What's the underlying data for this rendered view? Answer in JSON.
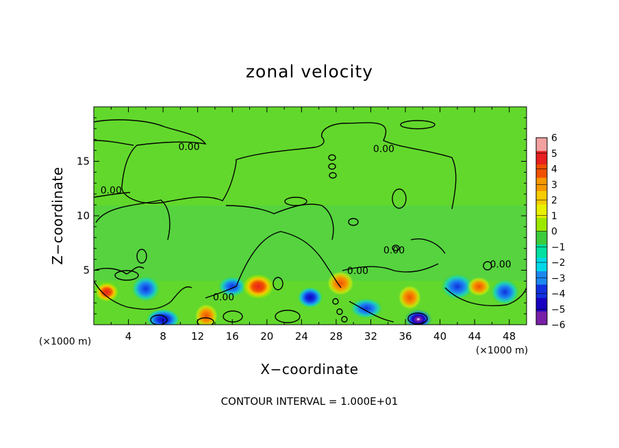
{
  "chart_data": {
    "type": "heatmap",
    "title": "zonal velocity",
    "xlabel": "X−coordinate",
    "ylabel": "Z−coordinate",
    "x_unit": "(×1000 m)",
    "y_unit": "(×1000 m)",
    "xlim": [
      0,
      50
    ],
    "ylim": [
      0,
      20
    ],
    "x_ticks": [
      4,
      8,
      12,
      16,
      20,
      24,
      28,
      32,
      36,
      40,
      44,
      48
    ],
    "x_tick_labels": [
      "4",
      "8",
      "12",
      "16",
      "20",
      "24",
      "28",
      "32",
      "36",
      "40",
      "44",
      "48"
    ],
    "y_ticks": [
      5,
      10,
      15
    ],
    "y_tick_labels": [
      "5",
      "10",
      "15"
    ],
    "colorbar": {
      "min": -6,
      "max": 6,
      "labels": [
        "6",
        "5",
        "4",
        "3",
        "2",
        "1",
        "0",
        "−1",
        "−2",
        "−3",
        "−4",
        "−5",
        "−6"
      ],
      "values": [
        6,
        5,
        4,
        3,
        2,
        1,
        0,
        -1,
        -2,
        -3,
        -4,
        -5,
        -6
      ],
      "colors": [
        "#f3a0a0",
        "#e82020",
        "#f05000",
        "#f69800",
        "#f6cc00",
        "#e8f000",
        "#9ce800",
        "#3ccc3c",
        "#00e0a0",
        "#00d8e8",
        "#1c88f0",
        "#1030e0",
        "#1800c0",
        "#7820a8"
      ]
    },
    "contour_labels": [
      {
        "text": "0.00",
        "x": 11,
        "z": 16.3
      },
      {
        "text": "0.00",
        "x": 2.0,
        "z": 12.3
      },
      {
        "text": "0.00",
        "x": 33.5,
        "z": 16.1
      },
      {
        "text": "0.00",
        "x": 34.7,
        "z": 6.8
      },
      {
        "text": "0.00",
        "x": 30.5,
        "z": 4.9
      },
      {
        "text": "0.00",
        "x": 47.0,
        "z": 5.5
      },
      {
        "text": "0.00",
        "x": 15.0,
        "z": 2.5
      }
    ],
    "field_features": [
      {
        "x": 1.5,
        "z": 3.0,
        "v": 4.5
      },
      {
        "x": 6.0,
        "z": 3.3,
        "v": -3.5
      },
      {
        "x": 8.0,
        "z": 0.5,
        "v": -4.5
      },
      {
        "x": 13.0,
        "z": 0.8,
        "v": 4.0
      },
      {
        "x": 16.0,
        "z": 3.5,
        "v": -3.5
      },
      {
        "x": 19.0,
        "z": 3.5,
        "v": 4.5
      },
      {
        "x": 25.0,
        "z": 2.5,
        "v": -4.0
      },
      {
        "x": 28.5,
        "z": 3.8,
        "v": 4.0
      },
      {
        "x": 31.5,
        "z": 1.5,
        "v": -3.0
      },
      {
        "x": 36.5,
        "z": 2.5,
        "v": 3.5
      },
      {
        "x": 37.5,
        "z": 0.5,
        "v": -6.0
      },
      {
        "x": 42.0,
        "z": 3.5,
        "v": -3.0
      },
      {
        "x": 44.5,
        "z": 3.5,
        "v": 4.0
      },
      {
        "x": 47.5,
        "z": 3.0,
        "v": -3.5
      }
    ]
  },
  "footer": {
    "contour_interval": "CONTOUR INTERVAL = 1.000E+01"
  }
}
